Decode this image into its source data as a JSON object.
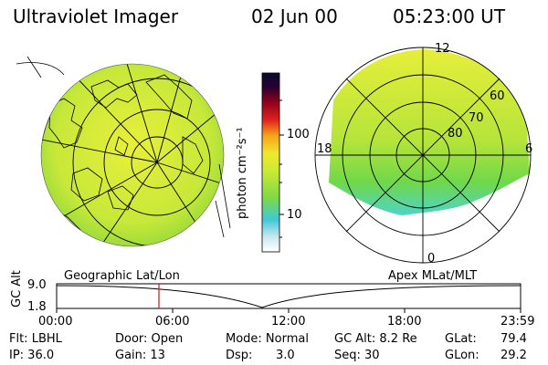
{
  "header": {
    "title": "Ultraviolet Imager",
    "date": "02 Jun 00",
    "time": "05:23:00 UT"
  },
  "colorbar": {
    "unit_label": "photon cm⁻²s⁻¹",
    "ticks": [
      "100",
      "10"
    ]
  },
  "polar_plot": {
    "labels": {
      "top": "12",
      "left": "18",
      "right": "6",
      "bottom": "0"
    },
    "lat_rings": [
      "60",
      "70",
      "80"
    ]
  },
  "left_map_caption": "Geographic Lat/Lon",
  "right_map_caption": "Apex MLat/MLT",
  "altitude_plot": {
    "ylabel": "GC Alt",
    "yticks": [
      "9.0",
      "1.8"
    ],
    "xticks": [
      "00:00",
      "06:00",
      "12:00",
      "18:00",
      "23:59"
    ]
  },
  "info": {
    "filter": "Flt: LBHL",
    "ip": "IP: 36.0",
    "door": "Door: Open",
    "gain": "Gain: 13",
    "mode": "Mode: Normal",
    "dsp_label": "Dsp:",
    "dsp_value": "3.0",
    "gc_alt": "GC Alt: 8.2 Re",
    "seq": "Seq: 30",
    "glat_label": "GLat:",
    "glat_value": "79.4",
    "glon_label": "GLon:",
    "glon_value": "29.2"
  },
  "colors": {
    "yellow": "#e8ef3a",
    "green": "#8ed83a",
    "cyan": "#4fd4c8",
    "orange": "#f6a21c",
    "red": "#e0201c",
    "darkred": "#6a0010",
    "navy": "#0a0a30"
  }
}
